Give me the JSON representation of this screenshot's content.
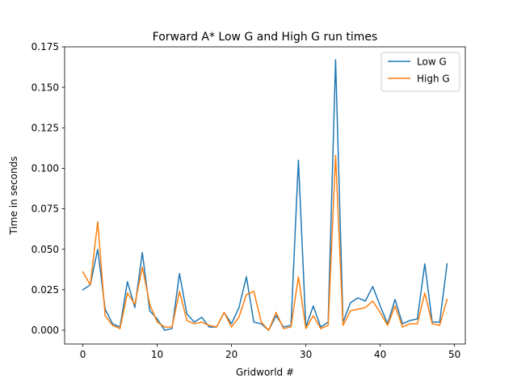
{
  "chart_data": {
    "type": "line",
    "title": "Forward A* Low G and High G run times",
    "xlabel": "Gridworld #",
    "ylabel": "Time in seconds",
    "xlim": [
      -2.45,
      51.45
    ],
    "ylim": [
      -0.0085,
      0.175
    ],
    "xticks": [
      0,
      10,
      20,
      30,
      40,
      50
    ],
    "xtick_labels": [
      "0",
      "10",
      "20",
      "30",
      "40",
      "50"
    ],
    "yticks": [
      0.0,
      0.025,
      0.05,
      0.075,
      0.1,
      0.125,
      0.15,
      0.175
    ],
    "ytick_labels": [
      "0.000",
      "0.025",
      "0.050",
      "0.075",
      "0.100",
      "0.125",
      "0.150",
      "0.175"
    ],
    "grid": false,
    "legend_position": "top-right",
    "x": [
      0,
      1,
      2,
      3,
      4,
      5,
      6,
      7,
      8,
      9,
      10,
      11,
      12,
      13,
      14,
      15,
      16,
      17,
      18,
      19,
      20,
      21,
      22,
      23,
      24,
      25,
      26,
      27,
      28,
      29,
      30,
      31,
      32,
      33,
      34,
      35,
      36,
      37,
      38,
      39,
      40,
      41,
      42,
      43,
      44,
      45,
      46,
      47,
      48,
      49
    ],
    "series": [
      {
        "name": "Low G",
        "color": "#1f77b4",
        "values": [
          0.025,
          0.028,
          0.05,
          0.013,
          0.004,
          0.002,
          0.03,
          0.014,
          0.048,
          0.012,
          0.007,
          0.0,
          0.001,
          0.035,
          0.01,
          0.005,
          0.008,
          0.002,
          0.002,
          0.011,
          0.004,
          0.014,
          0.033,
          0.005,
          0.004,
          0.0,
          0.009,
          0.002,
          0.003,
          0.105,
          0.002,
          0.015,
          0.002,
          0.005,
          0.167,
          0.005,
          0.017,
          0.02,
          0.018,
          0.027,
          0.015,
          0.004,
          0.019,
          0.004,
          0.006,
          0.007,
          0.041,
          0.005,
          0.005,
          0.041
        ]
      },
      {
        "name": "High G",
        "color": "#ff7f0e",
        "values": [
          0.036,
          0.028,
          0.067,
          0.009,
          0.003,
          0.001,
          0.023,
          0.016,
          0.039,
          0.016,
          0.005,
          0.002,
          0.002,
          0.024,
          0.006,
          0.004,
          0.005,
          0.003,
          0.002,
          0.011,
          0.002,
          0.008,
          0.022,
          0.024,
          0.005,
          0.0,
          0.011,
          0.001,
          0.002,
          0.033,
          0.001,
          0.009,
          0.001,
          0.003,
          0.108,
          0.003,
          0.012,
          0.013,
          0.014,
          0.018,
          0.011,
          0.003,
          0.015,
          0.002,
          0.004,
          0.004,
          0.023,
          0.004,
          0.003,
          0.019
        ]
      }
    ]
  }
}
